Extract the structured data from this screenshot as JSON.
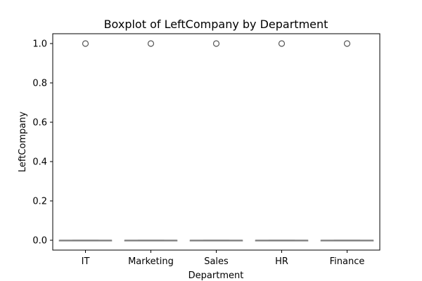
{
  "chart_data": {
    "type": "boxplot",
    "title": "Boxplot of LeftCompany by Department",
    "xlabel": "Department",
    "ylabel": "LeftCompany",
    "categories": [
      "IT",
      "Marketing",
      "Sales",
      "HR",
      "Finance"
    ],
    "y_ticks": [
      "0.0",
      "0.2",
      "0.4",
      "0.6",
      "0.8",
      "1.0"
    ],
    "ylim": [
      -0.05,
      1.05
    ],
    "grid": false,
    "legend": "none",
    "boxes": [
      {
        "category": "IT",
        "min": 0,
        "q1": 0,
        "median": 0,
        "q3": 0,
        "max": 0,
        "outliers": [
          1
        ]
      },
      {
        "category": "Marketing",
        "min": 0,
        "q1": 0,
        "median": 0,
        "q3": 0,
        "max": 0,
        "outliers": [
          1
        ]
      },
      {
        "category": "Sales",
        "min": 0,
        "q1": 0,
        "median": 0,
        "q3": 0,
        "max": 0,
        "outliers": [
          1
        ]
      },
      {
        "category": "HR",
        "min": 0,
        "q1": 0,
        "median": 0,
        "q3": 0,
        "max": 0,
        "outliers": [
          1
        ]
      },
      {
        "category": "Finance",
        "min": 0,
        "q1": 0,
        "median": 0,
        "q3": 0,
        "max": 0,
        "outliers": [
          1
        ]
      }
    ],
    "colors": {
      "box": "#808080",
      "outlier": "#555555",
      "axes": "#000000"
    }
  }
}
